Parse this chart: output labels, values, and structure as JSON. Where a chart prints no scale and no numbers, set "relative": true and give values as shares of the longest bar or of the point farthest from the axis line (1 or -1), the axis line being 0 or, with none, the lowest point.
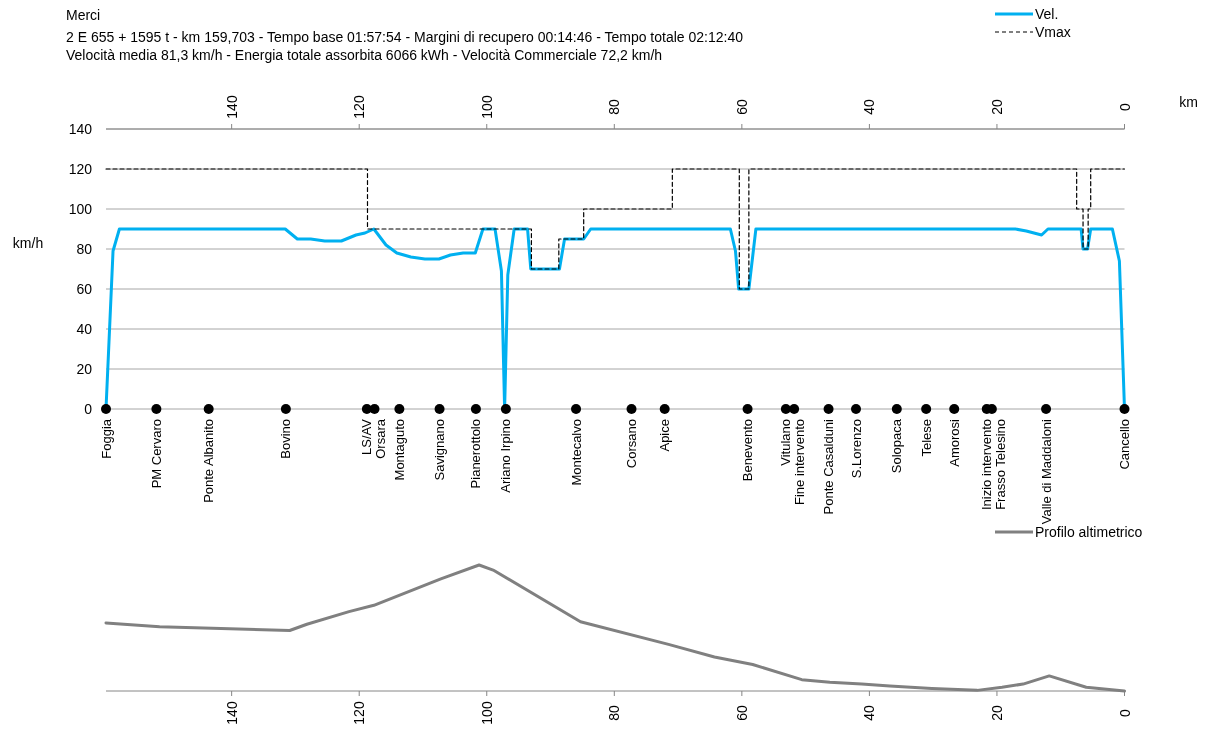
{
  "chart_data": [
    {
      "type": "line",
      "title": "Merci",
      "subtitle": "2 E 655 + 1595 t  -  km 159,703  -  Tempo base 01:57:54  -  Margini di recupero 00:14:46  -  Tempo totale 02:12:40\nVelocità media 81,3 km/h  -  Energia totale assorbita 6066 kWh  -  Velocità Commerciale 72,2 km/h",
      "xlabel": "km",
      "ylabel": "km/h",
      "xlim": [
        159.703,
        0
      ],
      "xticks": [
        140,
        120,
        100,
        80,
        60,
        40,
        20,
        0
      ],
      "ylim": [
        0,
        140
      ],
      "yticks": [
        0,
        20,
        40,
        60,
        80,
        100,
        120,
        140
      ],
      "grid": "y",
      "legend": "top right",
      "series": [
        {
          "name": "Vel.",
          "color": "#00b0f0",
          "line_style": "solid",
          "x": [
            159.703,
            158.6,
            157.6,
            131.6,
            129.7,
            128.7,
            127.6,
            125.4,
            122.8,
            120.5,
            119.1,
            117.7,
            115.8,
            114.1,
            111.9,
            109.7,
            107.5,
            105.7,
            103.7,
            101.8,
            100.6,
            98.7,
            97.7,
            97.2,
            96.7,
            95.7,
            93.6,
            93.1,
            88.6,
            87.8,
            84.8,
            83.7,
            61.8,
            61.0,
            60.5,
            58.9,
            57.8,
            17.1,
            15.4,
            13.0,
            12.0,
            6.8,
            6.5,
            5.8,
            5.3,
            1.9,
            0.8,
            0
          ],
          "values": [
            0,
            79,
            90,
            90,
            85,
            85,
            85,
            84,
            84,
            87,
            88,
            90,
            82,
            78,
            76,
            75,
            75,
            77,
            78,
            78,
            90,
            90,
            69,
            0,
            67,
            90,
            90,
            70,
            70,
            85,
            85,
            90,
            90,
            79,
            60,
            60,
            90,
            90,
            89,
            87,
            90,
            90,
            80,
            80,
            90,
            90,
            74,
            0
          ]
        },
        {
          "name": "Vmax",
          "color": "#000000",
          "line_style": "dashed",
          "x": [
            159.703,
            118.7,
            118.7,
            93.0,
            93.0,
            88.7,
            88.7,
            84.8,
            84.8,
            70.9,
            70.9,
            60.4,
            60.4,
            58.9,
            58.9,
            7.5,
            7.5,
            6.5,
            6.5,
            5.7,
            5.7,
            5.3,
            5.3,
            0
          ],
          "values": [
            120,
            120,
            90,
            90,
            70,
            70,
            85,
            85,
            100,
            100,
            120,
            120,
            60,
            60,
            120,
            120,
            100,
            100,
            80,
            80,
            100,
            100,
            120,
            120
          ]
        },
        {
          "type": "scatter",
          "color": "#000000",
          "marker": "circle",
          "x": [
            159.703,
            151.8,
            143.6,
            131.5,
            118.8,
            117.6,
            113.7,
            107.4,
            101.7,
            97.0,
            86.0,
            77.3,
            72.1,
            59.1,
            53.1,
            51.8,
            46.4,
            42.1,
            35.7,
            31.1,
            26.7,
            21.6,
            20.8,
            12.3,
            0
          ],
          "values": [
            0,
            0,
            0,
            0,
            0,
            0,
            0,
            0,
            0,
            0,
            0,
            0,
            0,
            0,
            0,
            0,
            0,
            0,
            0,
            0,
            0,
            0,
            0,
            0,
            0
          ]
        }
      ],
      "annotations": [
        {
          "text": "Foggia",
          "x": 159.703,
          "y": 0
        },
        {
          "text": "PM Cervaro",
          "x": 151.8,
          "y": 0
        },
        {
          "text": "Ponte Albanito",
          "x": 143.6,
          "y": 0
        },
        {
          "text": "Bovino",
          "x": 131.5,
          "y": 0
        },
        {
          "text": "LS/AV",
          "x": 118.8,
          "y": 0
        },
        {
          "text": "Orsara",
          "x": 117.6,
          "y": 0
        },
        {
          "text": "Montaguto",
          "x": 113.7,
          "y": 0
        },
        {
          "text": "Savignano",
          "x": 107.4,
          "y": 0
        },
        {
          "text": "Pianerottolo",
          "x": 101.7,
          "y": 0
        },
        {
          "text": "Ariano Irpino",
          "x": 97.0,
          "y": 0
        },
        {
          "text": "Montecalvo",
          "x": 86.0,
          "y": 0
        },
        {
          "text": "Corsano",
          "x": 77.3,
          "y": 0
        },
        {
          "text": "Apice",
          "x": 72.1,
          "y": 0
        },
        {
          "text": "Benevento",
          "x": 59.1,
          "y": 0
        },
        {
          "text": "Vitulano",
          "x": 53.1,
          "y": 0
        },
        {
          "text": "Fine intervento",
          "x": 51.8,
          "y": 0
        },
        {
          "text": "Ponte Casalduni",
          "x": 46.4,
          "y": 0
        },
        {
          "text": "S.Lorenzo",
          "x": 42.1,
          "y": 0
        },
        {
          "text": "Solopaca",
          "x": 35.7,
          "y": 0
        },
        {
          "text": "Telese",
          "x": 31.1,
          "y": 0
        },
        {
          "text": "Amorosi",
          "x": 26.7,
          "y": 0
        },
        {
          "text": "Inizio intervento",
          "x": 21.6,
          "y": 0
        },
        {
          "text": "Frasso Telesino",
          "x": 20.8,
          "y": 0
        },
        {
          "text": "Valle di Maddaloni",
          "x": 12.3,
          "y": 0
        },
        {
          "text": "Cancello",
          "x": 0,
          "y": 0
        }
      ]
    },
    {
      "type": "line",
      "relative": true,
      "xlim": [
        159.703,
        0
      ],
      "xticks": [
        140,
        120,
        100,
        80,
        60,
        40,
        20,
        0
      ],
      "legend": "top right",
      "tick_labels": "x",
      "series": [
        {
          "name": "Profilo altimetrico",
          "color": "#808080",
          "x": [
            159.703,
            151.3,
            130.9,
            128.2,
            121.6,
            117.7,
            107.2,
            101.2,
            99.0,
            85.3,
            71.5,
            64.3,
            58.3,
            50.6,
            46.2,
            41.2,
            36.8,
            30.2,
            23.1,
            19.2,
            15.9,
            11.8,
            6.0,
            0
          ],
          "values": [
            0.54,
            0.51,
            0.48,
            0.53,
            0.63,
            0.68,
            0.89,
            1,
            0.96,
            0.55,
            0.37,
            0.27,
            0.21,
            0.09,
            0.07,
            0.055,
            0.04,
            0.02,
            0.005,
            0.03,
            0.055,
            0.12,
            0.03,
            0
          ]
        }
      ]
    }
  ]
}
